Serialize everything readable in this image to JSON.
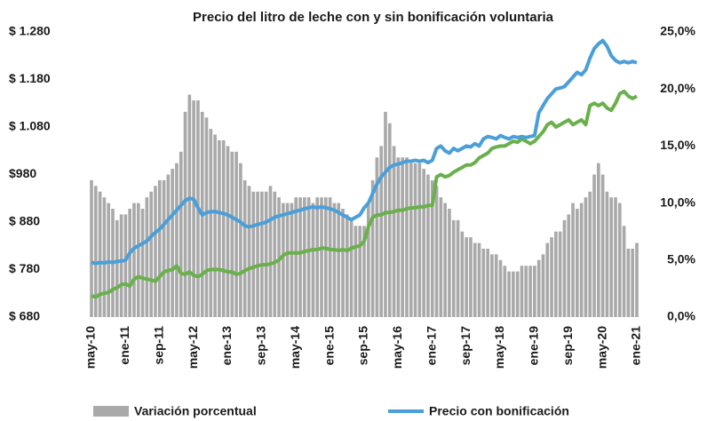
{
  "chart_data": {
    "type": "bar_line",
    "title": "Precio del litro de leche con y sin bonificación voluntaria",
    "categories": [
      "may-10",
      null,
      null,
      null,
      null,
      null,
      null,
      null,
      "ene-11",
      null,
      null,
      null,
      null,
      null,
      null,
      null,
      "sep-11",
      null,
      null,
      null,
      null,
      null,
      null,
      null,
      "may-12",
      null,
      null,
      null,
      null,
      null,
      null,
      null,
      "ene-13",
      null,
      null,
      null,
      null,
      null,
      null,
      null,
      "sep-13",
      null,
      null,
      null,
      null,
      null,
      null,
      null,
      "may-14",
      null,
      null,
      null,
      null,
      null,
      null,
      null,
      "ene-15",
      null,
      null,
      null,
      null,
      null,
      null,
      null,
      "sep-15",
      null,
      null,
      null,
      null,
      null,
      null,
      null,
      "may-16",
      null,
      null,
      null,
      null,
      null,
      null,
      null,
      "ene-17",
      null,
      null,
      null,
      null,
      null,
      null,
      null,
      "sep-17",
      null,
      null,
      null,
      null,
      null,
      null,
      null,
      "may-18",
      null,
      null,
      null,
      null,
      null,
      null,
      null,
      "ene-19",
      null,
      null,
      null,
      null,
      null,
      null,
      null,
      "sep-19",
      null,
      null,
      null,
      null,
      null,
      null,
      null,
      "may-20",
      null,
      null,
      null,
      null,
      null,
      null,
      null,
      "ene-21"
    ],
    "series": [
      {
        "name": "Variación porcentual",
        "kind": "bar",
        "axis": "y2",
        "color": "#a9a9a9",
        "values": [
          12,
          11.5,
          11,
          10.5,
          10,
          9.5,
          8.5,
          9,
          9,
          9.5,
          10,
          10,
          9.5,
          10.5,
          11,
          11.5,
          12,
          12,
          12.5,
          13,
          13.5,
          14.5,
          18,
          19.5,
          19,
          19,
          18,
          17.5,
          16.5,
          16,
          15.5,
          15.5,
          15,
          14.5,
          14.5,
          13.5,
          12,
          11.5,
          11,
          11,
          11,
          11,
          11.5,
          11,
          10.5,
          10,
          10,
          10,
          10.5,
          10.5,
          10.5,
          10.5,
          10,
          10.5,
          10.5,
          10.5,
          10.5,
          10,
          10,
          9.5,
          9,
          8.5,
          8,
          8,
          8,
          10,
          12,
          14,
          15,
          18,
          17,
          15,
          14,
          14,
          14,
          13.5,
          13.5,
          13.5,
          13,
          12.5,
          12,
          11.5,
          10.5,
          10,
          9.5,
          8.5,
          8.5,
          7.5,
          7,
          7,
          6.5,
          6.5,
          6,
          6,
          5.5,
          5.5,
          5,
          4.5,
          4,
          4,
          4,
          4.5,
          4.5,
          4.5,
          4.5,
          5,
          5.5,
          6.5,
          7,
          7.5,
          7.5,
          8.5,
          9,
          10,
          9.5,
          10,
          10.5,
          11,
          12.5,
          13.5,
          12.5,
          11,
          10.5,
          10.5,
          10,
          8,
          6,
          6,
          6.5
        ]
      },
      {
        "kind": "line",
        "color": "#6ab04c",
        "values": [
          725,
          722,
          728,
          730,
          732,
          738,
          742,
          748,
          750,
          745,
          760,
          765,
          762,
          760,
          758,
          755,
          765,
          775,
          778,
          780,
          788,
          772,
          770,
          775,
          768,
          765,
          770,
          778,
          780,
          780,
          780,
          778,
          775,
          775,
          770,
          772,
          778,
          782,
          785,
          788,
          790,
          790,
          792,
          795,
          800,
          810,
          815,
          815,
          815,
          815,
          818,
          820,
          822,
          822,
          825,
          825,
          822,
          822,
          820,
          822,
          820,
          825,
          828,
          830,
          840,
          870,
          890,
          895,
          895,
          900,
          900,
          902,
          905,
          905,
          908,
          910,
          910,
          912,
          912,
          915,
          915,
          975,
          980,
          975,
          978,
          985,
          990,
          995,
          1000,
          1000,
          1005,
          1015,
          1020,
          1025,
          1035,
          1038,
          1040,
          1040,
          1045,
          1050,
          1048,
          1055,
          1050,
          1045,
          1050,
          1060,
          1070,
          1085,
          1090,
          1080,
          1085,
          1090,
          1095,
          1085,
          1090,
          1095,
          1085,
          1125,
          1130,
          1125,
          1130,
          1120,
          1115,
          1130,
          1150,
          1155,
          1145,
          1140,
          1145
        ]
      },
      {
        "name": "Precio con bonificación",
        "kind": "line",
        "color": "#4a9fd8",
        "values": [
          795,
          793,
          795,
          794,
          796,
          795,
          797,
          798,
          800,
          815,
          825,
          830,
          835,
          840,
          850,
          858,
          865,
          875,
          885,
          895,
          905,
          915,
          925,
          930,
          928,
          910,
          895,
          900,
          902,
          902,
          900,
          898,
          895,
          890,
          885,
          880,
          872,
          870,
          872,
          875,
          877,
          880,
          885,
          890,
          893,
          895,
          898,
          900,
          903,
          905,
          908,
          910,
          912,
          910,
          912,
          910,
          908,
          905,
          900,
          895,
          890,
          885,
          890,
          895,
          910,
          920,
          940,
          960,
          975,
          985,
          995,
          1000,
          1002,
          1005,
          1008,
          1008,
          1010,
          1008,
          1010,
          1005,
          1010,
          1035,
          1040,
          1030,
          1025,
          1035,
          1030,
          1035,
          1040,
          1038,
          1045,
          1040,
          1055,
          1060,
          1058,
          1055,
          1062,
          1058,
          1055,
          1060,
          1058,
          1060,
          1058,
          1060,
          1062,
          1110,
          1125,
          1140,
          1150,
          1160,
          1162,
          1165,
          1175,
          1185,
          1195,
          1190,
          1200,
          1225,
          1245,
          1255,
          1262,
          1250,
          1230,
          1220,
          1215,
          1218,
          1215,
          1218,
          1215
        ]
      }
    ],
    "ylim": [
      680,
      1280
    ],
    "yticks": [
      {
        "value": 680,
        "label": "$ 680"
      },
      {
        "value": 780,
        "label": "$ 780"
      },
      {
        "value": 880,
        "label": "$ 880"
      },
      {
        "value": 980,
        "label": "$980"
      },
      {
        "value": 1080,
        "label": "$ 1.080"
      },
      {
        "value": 1180,
        "label": "$ 1.180"
      },
      {
        "value": 1280,
        "label": "$ 1.280"
      }
    ],
    "y2lim": [
      0,
      25
    ],
    "y2ticks": [
      {
        "value": 0,
        "label": "0,0%"
      },
      {
        "value": 5,
        "label": "5,0%"
      },
      {
        "value": 10,
        "label": "10,0%"
      },
      {
        "value": 15,
        "label": "15,0%"
      },
      {
        "value": 20,
        "label": "20,0%"
      },
      {
        "value": 25,
        "label": "25,0%"
      }
    ]
  }
}
